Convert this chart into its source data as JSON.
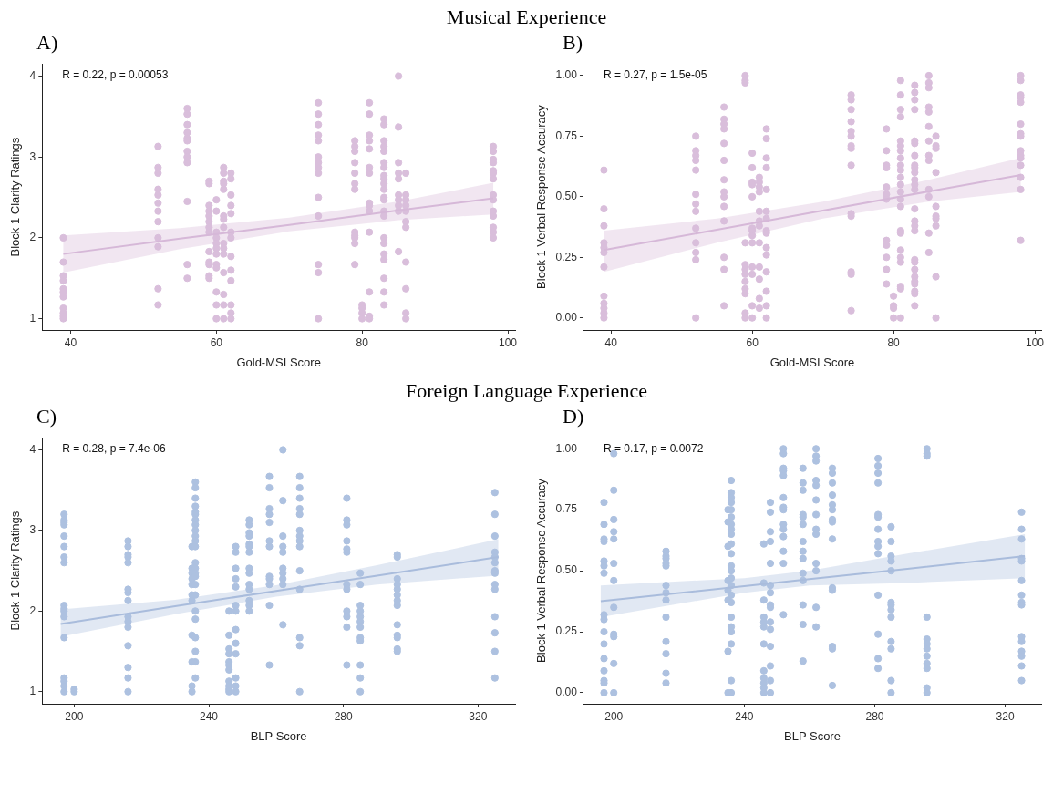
{
  "chart_data": [
    {
      "type": "scatter",
      "subtitle": "Musical Experience",
      "title": "A)",
      "xlabel": "Gold-MSI Score",
      "ylabel": "Block 1 Clarity Ratings",
      "annotations": [
        "R = 0.22, p = 0.00053"
      ],
      "marker": "circle",
      "xlim": [
        36.1,
        101
      ],
      "xticks": [
        40,
        60,
        80,
        100
      ],
      "ylim": [
        0.86,
        4.15
      ],
      "yticks": [
        1,
        2,
        3,
        4
      ],
      "series": [
        {
          "color": "#d9bedb",
          "x": [
            39,
            39,
            39,
            39,
            39,
            39,
            39,
            39,
            39,
            39,
            39,
            52,
            52,
            52,
            52,
            52,
            52,
            52,
            52,
            52,
            52,
            52,
            52,
            56,
            56,
            56,
            56,
            56,
            56,
            56,
            56,
            56,
            56,
            56,
            56,
            59,
            59,
            59,
            59,
            59,
            59,
            59,
            59,
            59,
            59,
            59,
            59,
            59,
            60,
            60,
            60,
            60,
            60,
            60,
            60,
            60,
            60,
            60,
            60,
            60,
            61,
            61,
            61,
            61,
            61,
            61,
            61,
            61,
            61,
            61,
            61,
            61,
            61,
            61,
            61,
            62,
            62,
            62,
            62,
            62,
            62,
            62,
            62,
            62,
            62,
            62,
            62,
            62,
            74,
            74,
            74,
            74,
            74,
            74,
            74,
            74,
            74,
            74,
            74,
            74,
            74,
            74,
            79,
            79,
            79,
            79,
            79,
            79,
            79,
            79,
            79,
            79,
            79,
            79,
            80,
            80,
            80,
            80,
            81,
            81,
            81,
            81,
            81,
            81,
            81,
            81,
            81,
            81,
            81,
            81,
            81,
            81,
            83,
            83,
            83,
            83,
            83,
            83,
            83,
            83,
            83,
            83,
            83,
            83,
            83,
            83,
            83,
            83,
            83,
            83,
            83,
            83,
            83,
            83,
            85,
            85,
            85,
            85,
            85,
            85,
            85,
            85,
            85,
            85,
            86,
            86,
            86,
            86,
            86,
            86,
            86,
            86,
            86,
            86,
            86,
            98,
            98,
            98,
            98,
            98,
            98,
            98,
            98,
            98,
            98,
            98,
            98,
            98,
            98
          ],
          "values": [
            2.0,
            1.7,
            1.53,
            1.47,
            1.37,
            1.33,
            1.27,
            1.13,
            1.07,
            1.03,
            1.0,
            3.13,
            2.87,
            2.8,
            2.6,
            2.53,
            2.43,
            2.33,
            2.2,
            2.0,
            1.89,
            1.37,
            1.17,
            3.6,
            3.53,
            3.4,
            3.3,
            3.23,
            3.2,
            3.07,
            3.0,
            2.93,
            2.45,
            1.67,
            1.5,
            2.7,
            2.67,
            2.4,
            2.33,
            2.27,
            2.2,
            2.13,
            2.07,
            1.83,
            1.7,
            1.67,
            1.53,
            1.5,
            2.47,
            2.33,
            2.07,
            2.0,
            1.93,
            1.87,
            1.8,
            1.67,
            1.63,
            1.33,
            1.17,
            1.0,
            2.87,
            2.8,
            2.7,
            2.67,
            2.6,
            2.27,
            2.23,
            2.13,
            1.93,
            1.87,
            1.8,
            1.57,
            1.3,
            1.17,
            1.0,
            2.8,
            2.73,
            2.53,
            2.4,
            2.3,
            2.07,
            2.0,
            1.77,
            1.6,
            1.47,
            1.17,
            1.07,
            1.0,
            3.67,
            3.53,
            3.4,
            3.27,
            3.2,
            3.0,
            2.93,
            2.87,
            2.8,
            2.5,
            2.27,
            1.67,
            1.57,
            1.0,
            3.2,
            3.13,
            3.07,
            2.93,
            2.8,
            2.67,
            2.6,
            2.07,
            2.03,
            2.0,
            1.93,
            1.67,
            1.17,
            1.13,
            1.07,
            1.0,
            3.67,
            3.53,
            3.27,
            3.2,
            3.1,
            2.87,
            2.8,
            2.43,
            2.4,
            2.33,
            2.07,
            1.33,
            1.03,
            1.0,
            3.47,
            3.4,
            3.2,
            3.13,
            3.07,
            2.93,
            2.87,
            2.77,
            2.73,
            2.67,
            2.6,
            2.5,
            2.47,
            2.33,
            2.27,
            2.0,
            1.93,
            1.8,
            1.73,
            1.5,
            1.33,
            1.17,
            4.0,
            3.37,
            2.93,
            2.8,
            2.73,
            2.53,
            2.47,
            2.4,
            2.33,
            1.83,
            2.8,
            2.53,
            2.47,
            2.4,
            2.33,
            2.2,
            2.13,
            1.7,
            1.37,
            1.07,
            1.0,
            3.13,
            3.07,
            2.97,
            2.93,
            2.83,
            2.8,
            2.73,
            2.53,
            2.47,
            2.33,
            2.27,
            2.13,
            2.07,
            2.0
          ]
        },
        {
          "type": "line",
          "marker": "none",
          "color": "#d6b8d8",
          "x": [
            39,
            55,
            70,
            85,
            98
          ],
          "values": [
            1.8,
            1.99,
            2.16,
            2.34,
            2.49
          ],
          "lower": [
            1.57,
            1.86,
            2.08,
            2.22,
            2.29
          ],
          "upper": [
            2.03,
            2.12,
            2.25,
            2.45,
            2.68
          ]
        }
      ]
    },
    {
      "type": "scatter",
      "title": "B)",
      "xlabel": "Gold-MSI Score",
      "ylabel": "Block 1 Verbal Response Accuracy",
      "annotations": [
        "R = 0.27, p = 1.5e-05"
      ],
      "marker": "circle",
      "xlim": [
        36.1,
        100.9
      ],
      "xticks": [
        40,
        60,
        80,
        100
      ],
      "ylim": [
        -0.05,
        1.048
      ],
      "yticks": [
        {
          "value": 0,
          "label": "0.00"
        },
        0.25,
        {
          "value": 0.5,
          "label": "0.50"
        },
        0.75,
        {
          "value": 1,
          "label": "1.00"
        }
      ],
      "series": [
        {
          "color": "#d9bedb",
          "x": [
            39,
            39,
            39,
            39,
            39,
            39,
            39,
            39,
            39,
            39,
            39,
            39,
            52,
            52,
            52,
            52,
            52,
            52,
            52,
            52,
            52,
            52,
            52,
            52,
            52,
            56,
            56,
            56,
            56,
            56,
            56,
            56,
            56,
            56,
            56,
            56,
            56,
            56,
            56,
            59,
            59,
            59,
            59,
            59,
            59,
            59,
            59,
            59,
            59,
            59,
            59,
            60,
            60,
            60,
            60,
            60,
            60,
            60,
            60,
            60,
            60,
            60,
            60,
            60,
            61,
            61,
            61,
            61,
            61,
            61,
            61,
            61,
            61,
            61,
            61,
            61,
            62,
            62,
            62,
            62,
            62,
            62,
            62,
            62,
            62,
            62,
            62,
            62,
            62,
            62,
            62,
            74,
            74,
            74,
            74,
            74,
            74,
            74,
            74,
            74,
            74,
            74,
            74,
            74,
            74,
            79,
            79,
            79,
            79,
            79,
            79,
            79,
            79,
            79,
            79,
            79,
            79,
            80,
            80,
            80,
            80,
            81,
            81,
            81,
            81,
            81,
            81,
            81,
            81,
            81,
            81,
            81,
            81,
            81,
            81,
            81,
            81,
            81,
            81,
            81,
            81,
            81,
            81,
            81,
            83,
            83,
            83,
            83,
            83,
            83,
            83,
            83,
            83,
            83,
            83,
            83,
            83,
            83,
            83,
            83,
            83,
            83,
            83,
            83,
            83,
            83,
            83,
            83,
            83,
            83,
            85,
            85,
            85,
            85,
            85,
            85,
            85,
            85,
            85,
            85,
            85,
            85,
            85,
            86,
            86,
            86,
            86,
            86,
            86,
            86,
            86,
            86,
            86,
            98,
            98,
            98,
            98,
            98,
            98,
            98,
            98,
            98,
            98,
            98,
            98,
            98,
            98,
            98
          ],
          "values": [
            0.61,
            0.45,
            0.38,
            0.31,
            0.29,
            0.27,
            0.21,
            0.09,
            0.06,
            0.04,
            0.02,
            0.0,
            0.75,
            0.69,
            0.67,
            0.65,
            0.61,
            0.51,
            0.47,
            0.44,
            0.37,
            0.31,
            0.27,
            0.24,
            0.0,
            0.87,
            0.82,
            0.8,
            0.78,
            0.72,
            0.65,
            0.57,
            0.52,
            0.5,
            0.46,
            0.4,
            0.25,
            0.2,
            0.05,
            1.0,
            0.98,
            0.97,
            0.31,
            0.22,
            0.2,
            0.18,
            0.15,
            0.12,
            0.1,
            0.02,
            0.0,
            0.68,
            0.62,
            0.56,
            0.55,
            0.5,
            0.37,
            0.36,
            0.34,
            0.31,
            0.21,
            0.18,
            0.05,
            0.0,
            0.58,
            0.56,
            0.54,
            0.52,
            0.44,
            0.4,
            0.38,
            0.31,
            0.21,
            0.16,
            0.08,
            0.04,
            0.78,
            0.74,
            0.66,
            0.62,
            0.53,
            0.44,
            0.41,
            0.36,
            0.35,
            0.29,
            0.26,
            0.19,
            0.11,
            0.05,
            0.0,
            0.92,
            0.9,
            0.86,
            0.81,
            0.77,
            0.75,
            0.71,
            0.7,
            0.63,
            0.43,
            0.42,
            0.19,
            0.18,
            0.03,
            0.78,
            0.69,
            0.63,
            0.62,
            0.54,
            0.51,
            0.49,
            0.32,
            0.3,
            0.25,
            0.2,
            0.14,
            0.09,
            0.05,
            0.04,
            0.0,
            0.98,
            0.92,
            0.86,
            0.83,
            0.73,
            0.71,
            0.69,
            0.66,
            0.63,
            0.61,
            0.58,
            0.55,
            0.52,
            0.49,
            0.46,
            0.36,
            0.35,
            0.28,
            0.25,
            0.23,
            0.13,
            0.12,
            0.0,
            0.96,
            0.93,
            0.9,
            0.86,
            0.73,
            0.72,
            0.67,
            0.63,
            0.62,
            0.6,
            0.57,
            0.55,
            0.53,
            0.45,
            0.4,
            0.38,
            0.36,
            0.24,
            0.23,
            0.2,
            0.17,
            0.15,
            0.14,
            0.11,
            0.1,
            0.05,
            1.0,
            0.97,
            0.95,
            0.87,
            0.85,
            0.79,
            0.73,
            0.67,
            0.65,
            0.53,
            0.5,
            0.35,
            0.27,
            0.75,
            0.71,
            0.7,
            0.6,
            0.46,
            0.42,
            0.41,
            0.38,
            0.17,
            0.0,
            1.0,
            0.98,
            0.92,
            0.91,
            0.89,
            0.8,
            0.76,
            0.75,
            0.69,
            0.67,
            0.66,
            0.63,
            0.58,
            0.53,
            0.32
          ]
        },
        {
          "type": "line",
          "marker": "none",
          "color": "#d6b8d8",
          "x": [
            39,
            55,
            70,
            85,
            98
          ],
          "values": [
            0.28,
            0.364,
            0.443,
            0.522,
            0.59
          ],
          "lower": [
            0.19,
            0.31,
            0.41,
            0.48,
            0.52
          ],
          "upper": [
            0.36,
            0.41,
            0.48,
            0.57,
            0.66
          ]
        }
      ]
    },
    {
      "type": "scatter",
      "subtitle": "Foreign Language Experience",
      "title": "C)",
      "xlabel": "BLP Score",
      "ylabel": "Block 1 Clarity Ratings",
      "annotations": [
        "R = 0.28, p = 7.4e-06"
      ],
      "marker": "circle",
      "xlim": [
        190.5,
        331
      ],
      "xticks": [
        200,
        240,
        280,
        320
      ],
      "ylim": [
        0.85,
        4.15
      ],
      "yticks": [
        1,
        2,
        3,
        4
      ],
      "series": [
        {
          "color": "#adc1e0",
          "x": [
            197,
            197,
            197,
            197,
            197,
            197,
            197,
            197,
            197,
            197,
            197,
            197,
            197,
            197,
            197,
            197,
            197,
            200,
            200,
            216,
            216,
            216,
            216,
            216,
            216,
            216,
            216,
            216,
            216,
            216,
            216,
            216,
            216,
            216,
            235,
            235,
            235,
            235,
            235,
            235,
            235,
            235,
            235,
            235,
            235,
            236,
            236,
            236,
            236,
            236,
            236,
            236,
            236,
            236,
            236,
            236,
            236,
            236,
            236,
            236,
            236,
            236,
            236,
            236,
            236,
            236,
            236,
            236,
            236,
            246,
            246,
            246,
            246,
            246,
            246,
            246,
            246,
            246,
            246,
            246,
            248,
            248,
            248,
            248,
            248,
            248,
            248,
            248,
            248,
            248,
            248,
            248,
            248,
            252,
            252,
            252,
            252,
            252,
            252,
            252,
            252,
            252,
            252,
            252,
            252,
            252,
            252,
            258,
            258,
            258,
            258,
            258,
            258,
            258,
            258,
            258,
            258,
            258,
            258,
            262,
            262,
            262,
            262,
            262,
            262,
            262,
            262,
            262,
            262,
            267,
            267,
            267,
            267,
            267,
            267,
            267,
            267,
            267,
            267,
            267,
            267,
            267,
            267,
            281,
            281,
            281,
            281,
            281,
            281,
            281,
            281,
            281,
            281,
            281,
            281,
            285,
            285,
            285,
            285,
            285,
            285,
            285,
            285,
            285,
            285,
            285,
            285,
            296,
            296,
            296,
            296,
            296,
            296,
            296,
            296,
            296,
            296,
            296,
            296,
            296,
            325,
            325,
            325,
            325,
            325,
            325,
            325,
            325,
            325,
            325,
            325,
            325,
            325,
            325
          ],
          "values": [
            3.2,
            3.13,
            3.1,
            3.07,
            2.93,
            2.8,
            2.67,
            2.6,
            2.07,
            2.03,
            2.0,
            1.93,
            1.67,
            1.17,
            1.13,
            1.07,
            1.0,
            1.03,
            1.0,
            2.87,
            2.8,
            2.7,
            2.67,
            2.6,
            2.27,
            2.23,
            2.13,
            1.93,
            1.87,
            1.8,
            1.57,
            1.3,
            1.17,
            1.0,
            2.8,
            2.53,
            2.47,
            2.4,
            2.33,
            2.2,
            2.13,
            1.7,
            1.37,
            1.07,
            1.0,
            3.6,
            3.53,
            3.4,
            3.3,
            3.23,
            3.2,
            3.13,
            3.07,
            3.0,
            2.93,
            2.87,
            2.8,
            2.6,
            2.53,
            2.47,
            2.43,
            2.33,
            2.2,
            2.0,
            1.9,
            1.67,
            1.5,
            1.37,
            1.17,
            2.0,
            1.7,
            1.53,
            1.47,
            1.37,
            1.33,
            1.27,
            1.13,
            1.07,
            1.03,
            1.0,
            2.8,
            2.73,
            2.53,
            2.4,
            2.3,
            2.07,
            2.0,
            1.77,
            1.6,
            1.47,
            1.17,
            1.07,
            1.0,
            3.13,
            3.07,
            2.97,
            2.93,
            2.83,
            2.8,
            2.73,
            2.53,
            2.47,
            2.33,
            2.27,
            2.13,
            2.07,
            2.0,
            3.67,
            3.53,
            3.27,
            3.2,
            3.1,
            2.87,
            2.8,
            2.43,
            2.4,
            2.33,
            2.07,
            1.33,
            4.0,
            3.37,
            2.93,
            2.8,
            2.73,
            2.53,
            2.47,
            2.4,
            2.33,
            1.83,
            3.67,
            3.53,
            3.4,
            3.27,
            3.2,
            3.0,
            2.93,
            2.87,
            2.8,
            2.5,
            2.27,
            1.67,
            1.57,
            1.0,
            3.4,
            3.13,
            3.07,
            2.87,
            2.77,
            2.73,
            2.33,
            2.27,
            2.0,
            1.93,
            1.8,
            1.33,
            2.47,
            2.33,
            2.07,
            2.0,
            1.93,
            1.87,
            1.8,
            1.67,
            1.63,
            1.33,
            1.17,
            1.0,
            2.7,
            2.67,
            2.4,
            2.33,
            2.27,
            2.2,
            2.13,
            2.07,
            1.83,
            1.7,
            1.67,
            1.53,
            1.5,
            3.47,
            3.2,
            2.93,
            2.73,
            2.67,
            2.6,
            2.5,
            2.47,
            2.33,
            2.27,
            1.93,
            1.73,
            1.5,
            1.17
          ]
        },
        {
          "type": "line",
          "marker": "none",
          "color": "#a9bcdc",
          "x": [
            196,
            230,
            260,
            290,
            326
          ],
          "values": [
            1.84,
            2.06,
            2.25,
            2.44,
            2.67
          ],
          "lower": [
            1.68,
            1.96,
            2.18,
            2.33,
            2.44
          ],
          "upper": [
            2.02,
            2.14,
            2.32,
            2.57,
            2.89
          ]
        }
      ]
    },
    {
      "type": "scatter",
      "title": "D)",
      "xlabel": "BLP Score",
      "ylabel": "Block 1 Verbal Response Accuracy",
      "annotations": [
        "R = 0.17, p = 0.0072"
      ],
      "marker": "circle",
      "xlim": [
        190.7,
        331
      ],
      "xticks": [
        200,
        240,
        280,
        320
      ],
      "ylim": [
        -0.045,
        1.045
      ],
      "yticks": [
        {
          "value": 0,
          "label": "0.00"
        },
        0.25,
        {
          "value": 0.5,
          "label": "0.50"
        },
        0.75,
        {
          "value": 1,
          "label": "1.00"
        }
      ],
      "series": [
        {
          "color": "#adc1e0",
          "x": [
            197,
            197,
            197,
            197,
            197,
            197,
            197,
            197,
            197,
            197,
            197,
            197,
            197,
            197,
            197,
            197,
            200,
            200,
            200,
            200,
            200,
            200,
            200,
            200,
            200,
            200,
            200,
            200,
            216,
            216,
            216,
            216,
            216,
            216,
            216,
            216,
            216,
            216,
            216,
            216,
            216,
            235,
            235,
            235,
            235,
            235,
            235,
            235,
            235,
            236,
            236,
            236,
            236,
            236,
            236,
            236,
            236,
            236,
            236,
            236,
            236,
            236,
            236,
            236,
            236,
            236,
            236,
            236,
            236,
            236,
            236,
            236,
            246,
            246,
            246,
            246,
            246,
            246,
            246,
            246,
            246,
            246,
            246,
            246,
            248,
            248,
            248,
            248,
            248,
            248,
            248,
            248,
            248,
            248,
            248,
            248,
            248,
            248,
            248,
            252,
            252,
            252,
            252,
            252,
            252,
            252,
            252,
            252,
            252,
            252,
            252,
            252,
            252,
            258,
            258,
            258,
            258,
            258,
            258,
            258,
            258,
            258,
            258,
            258,
            258,
            258,
            258,
            262,
            262,
            262,
            262,
            262,
            262,
            262,
            262,
            262,
            262,
            262,
            262,
            262,
            267,
            267,
            267,
            267,
            267,
            267,
            267,
            267,
            267,
            267,
            267,
            267,
            267,
            267,
            281,
            281,
            281,
            281,
            281,
            281,
            281,
            281,
            281,
            281,
            281,
            281,
            281,
            281,
            285,
            285,
            285,
            285,
            285,
            285,
            285,
            285,
            285,
            285,
            285,
            285,
            285,
            296,
            296,
            296,
            296,
            296,
            296,
            296,
            296,
            296,
            296,
            296,
            296,
            325,
            325,
            325,
            325,
            325,
            325,
            325,
            325,
            325,
            325,
            325,
            325,
            325,
            325,
            325
          ],
          "values": [
            0.78,
            0.69,
            0.63,
            0.62,
            0.54,
            0.52,
            0.49,
            0.32,
            0.3,
            0.25,
            0.2,
            0.14,
            0.09,
            0.05,
            0.04,
            0.0,
            0.98,
            0.83,
            0.71,
            0.66,
            0.63,
            0.53,
            0.46,
            0.35,
            0.24,
            0.23,
            0.12,
            0.0,
            0.58,
            0.56,
            0.55,
            0.53,
            0.52,
            0.44,
            0.41,
            0.38,
            0.31,
            0.21,
            0.16,
            0.08,
            0.04,
            0.75,
            0.7,
            0.6,
            0.46,
            0.42,
            0.38,
            0.17,
            0.0,
            0.87,
            0.82,
            0.8,
            0.78,
            0.75,
            0.72,
            0.69,
            0.67,
            0.65,
            0.61,
            0.57,
            0.52,
            0.5,
            0.47,
            0.44,
            0.4,
            0.37,
            0.31,
            0.27,
            0.25,
            0.2,
            0.05,
            0.0,
            0.61,
            0.45,
            0.38,
            0.31,
            0.29,
            0.27,
            0.2,
            0.09,
            0.06,
            0.04,
            0.02,
            0.0,
            0.78,
            0.74,
            0.66,
            0.62,
            0.53,
            0.44,
            0.41,
            0.36,
            0.35,
            0.29,
            0.26,
            0.19,
            0.11,
            0.05,
            0.0,
            1.0,
            0.98,
            0.92,
            0.91,
            0.89,
            0.8,
            0.76,
            0.75,
            0.69,
            0.67,
            0.64,
            0.58,
            0.53,
            0.32,
            0.92,
            0.86,
            0.83,
            0.73,
            0.72,
            0.69,
            0.62,
            0.58,
            0.55,
            0.49,
            0.46,
            0.36,
            0.28,
            0.13,
            1.0,
            0.97,
            0.95,
            0.87,
            0.85,
            0.79,
            0.73,
            0.67,
            0.65,
            0.53,
            0.5,
            0.35,
            0.27,
            0.92,
            0.9,
            0.86,
            0.81,
            0.77,
            0.75,
            0.71,
            0.7,
            0.63,
            0.43,
            0.42,
            0.19,
            0.18,
            0.03,
            0.96,
            0.93,
            0.9,
            0.86,
            0.73,
            0.72,
            0.67,
            0.62,
            0.6,
            0.57,
            0.4,
            0.24,
            0.14,
            0.1,
            0.68,
            0.62,
            0.56,
            0.54,
            0.5,
            0.37,
            0.36,
            0.34,
            0.31,
            0.21,
            0.18,
            0.05,
            0.0,
            1.0,
            0.98,
            0.97,
            0.31,
            0.22,
            0.2,
            0.18,
            0.15,
            0.12,
            0.1,
            0.02,
            0.0,
            0.74,
            0.67,
            0.63,
            0.55,
            0.54,
            0.46,
            0.4,
            0.37,
            0.36,
            0.23,
            0.21,
            0.17,
            0.15,
            0.11,
            0.05
          ]
        },
        {
          "type": "line",
          "marker": "none",
          "color": "#a9bcdc",
          "x": [
            196,
            240,
            260,
            290,
            326
          ],
          "values": [
            0.375,
            0.437,
            0.466,
            0.508,
            0.56
          ],
          "lower": [
            0.31,
            0.41,
            0.44,
            0.45,
            0.47
          ],
          "upper": [
            0.44,
            0.47,
            0.5,
            0.57,
            0.65
          ]
        }
      ]
    }
  ]
}
